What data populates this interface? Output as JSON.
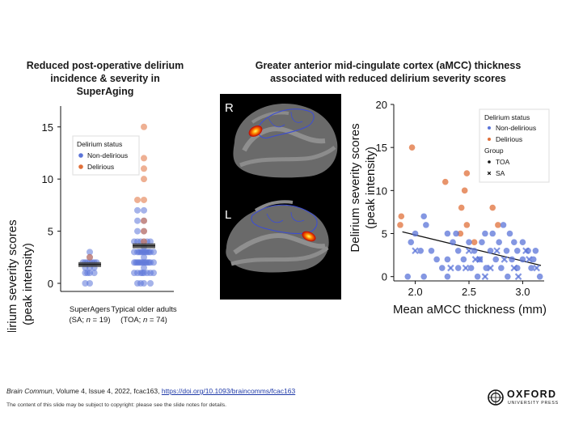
{
  "left_panel": {
    "title_line1": "Reduced post-operative delirium",
    "title_line2": "incidence & severity in SuperAging"
  },
  "right_panel": {
    "title_line1": "Greater anterior mid-cingulate cortex (aMCC) thickness",
    "title_line2": "associated with reduced delirium severity scores"
  },
  "brain": {
    "right_label": "R",
    "left_label": "L"
  },
  "colors": {
    "non_delirious": "#5b74d8",
    "delirious": "#e0703a",
    "median_bar": "#444444"
  },
  "chart_data": [
    {
      "type": "scatter",
      "subtype": "strip",
      "ylabel_line1": "Delirium severity scores",
      "ylabel_line2": "(peak intensity)",
      "ylim": [
        0,
        17
      ],
      "yticks": [
        0,
        5,
        10,
        15
      ],
      "categories": [
        {
          "name": "SuperAgers",
          "detail_prefix": "(SA; ",
          "detail_var": "n",
          "detail_suffix": " = 19)"
        },
        {
          "name": "Typical older adults",
          "detail_prefix": "(TOA; ",
          "detail_var": "n",
          "detail_suffix": " = 74)"
        }
      ],
      "medians": [
        1.8,
        3.6
      ],
      "legend": {
        "title": "Delirium status",
        "entries": [
          "Non-delirious",
          "Delirious"
        ],
        "position": "top-center"
      },
      "series": [
        {
          "name": "Non-delirious",
          "points": [
            [
              0,
              0
            ],
            [
              0,
              0
            ],
            [
              0,
              1
            ],
            [
              0,
              1
            ],
            [
              0,
              1
            ],
            [
              0,
              1
            ],
            [
              0,
              1.5
            ],
            [
              0,
              1.5
            ],
            [
              0,
              1.5
            ],
            [
              0,
              2
            ],
            [
              0,
              2
            ],
            [
              0,
              2
            ],
            [
              0,
              2
            ],
            [
              0,
              2
            ],
            [
              0,
              2
            ],
            [
              0,
              2
            ],
            [
              0,
              2.5
            ],
            [
              0,
              3
            ],
            [
              1,
              0
            ],
            [
              1,
              0
            ],
            [
              1,
              0
            ],
            [
              1,
              0
            ],
            [
              1,
              1
            ],
            [
              1,
              1
            ],
            [
              1,
              1
            ],
            [
              1,
              1
            ],
            [
              1,
              1
            ],
            [
              1,
              1
            ],
            [
              1,
              1
            ],
            [
              1,
              1
            ],
            [
              1,
              2
            ],
            [
              1,
              2
            ],
            [
              1,
              2
            ],
            [
              1,
              2
            ],
            [
              1,
              2
            ],
            [
              1,
              2
            ],
            [
              1,
              2
            ],
            [
              1,
              2
            ],
            [
              1,
              2
            ],
            [
              1,
              2
            ],
            [
              1,
              2
            ],
            [
              1,
              2
            ],
            [
              1,
              3
            ],
            [
              1,
              3
            ],
            [
              1,
              3
            ],
            [
              1,
              3
            ],
            [
              1,
              3
            ],
            [
              1,
              3
            ],
            [
              1,
              3
            ],
            [
              1,
              3
            ],
            [
              1,
              3
            ],
            [
              1,
              3
            ],
            [
              1,
              3
            ],
            [
              1,
              4
            ],
            [
              1,
              4
            ],
            [
              1,
              4
            ],
            [
              1,
              4
            ],
            [
              1,
              4
            ],
            [
              1,
              4
            ],
            [
              1,
              5
            ],
            [
              1,
              5
            ],
            [
              1,
              6
            ],
            [
              1,
              6
            ],
            [
              1,
              7
            ],
            [
              1,
              7
            ],
            [
              1,
              3.5
            ],
            [
              1,
              2.5
            ],
            [
              1,
              1.5
            ]
          ]
        },
        {
          "name": "Delirious",
          "points": [
            [
              0,
              2.5
            ],
            [
              1,
              15
            ],
            [
              1,
              12
            ],
            [
              1,
              11
            ],
            [
              1,
              10
            ],
            [
              1,
              8
            ],
            [
              1,
              8
            ],
            [
              1,
              6
            ],
            [
              1,
              5
            ],
            [
              1,
              4
            ]
          ]
        }
      ]
    },
    {
      "type": "scatter",
      "xlabel": "Mean aMCC thickness (mm)",
      "ylabel_line1": "Delirium severity scores",
      "ylabel_line2": "(peak intensity)",
      "xlim": [
        1.8,
        3.2
      ],
      "ylim": [
        -0.5,
        20
      ],
      "xticks": [
        2.0,
        2.5,
        3.0
      ],
      "yticks": [
        0,
        5,
        10,
        15,
        20
      ],
      "legend": {
        "title1": "Delirium status",
        "entries1": [
          "Non-delirious",
          "Delirious"
        ],
        "title2": "Group",
        "entries2": [
          "TOA",
          "SA"
        ],
        "position": "top-right"
      },
      "trendline": {
        "x": [
          1.88,
          3.17
        ],
        "y": [
          5.2,
          1.3
        ]
      },
      "series": [
        {
          "name": "Delirious",
          "marker": "circle",
          "points": [
            [
              1.97,
              15
            ],
            [
              2.28,
              11
            ],
            [
              2.48,
              12
            ],
            [
              2.46,
              10
            ],
            [
              2.72,
              8
            ],
            [
              2.43,
              8
            ],
            [
              1.87,
              7
            ],
            [
              1.86,
              6
            ],
            [
              2.48,
              6
            ],
            [
              2.77,
              6
            ],
            [
              2.42,
              5
            ],
            [
              2.55,
              4
            ]
          ]
        },
        {
          "name": "Non-delirious (TOA)",
          "marker": "circle",
          "points": [
            [
              2.08,
              7
            ],
            [
              2.1,
              6
            ],
            [
              2.82,
              6
            ],
            [
              2.0,
              5
            ],
            [
              2.3,
              5
            ],
            [
              2.38,
              5
            ],
            [
              2.65,
              5
            ],
            [
              2.72,
              5
            ],
            [
              2.88,
              5
            ],
            [
              1.96,
              4
            ],
            [
              2.35,
              4
            ],
            [
              2.5,
              4
            ],
            [
              2.62,
              4
            ],
            [
              2.78,
              4
            ],
            [
              2.92,
              4
            ],
            [
              3.0,
              4
            ],
            [
              2.05,
              3
            ],
            [
              2.15,
              3
            ],
            [
              2.4,
              3
            ],
            [
              2.55,
              3
            ],
            [
              2.7,
              3
            ],
            [
              2.85,
              3
            ],
            [
              2.95,
              3
            ],
            [
              3.05,
              3
            ],
            [
              3.12,
              3
            ],
            [
              2.2,
              2
            ],
            [
              2.3,
              2
            ],
            [
              2.45,
              2
            ],
            [
              2.6,
              2
            ],
            [
              2.75,
              2
            ],
            [
              2.9,
              2
            ],
            [
              3.0,
              2
            ],
            [
              3.1,
              2
            ],
            [
              2.25,
              1
            ],
            [
              2.4,
              1
            ],
            [
              2.52,
              1
            ],
            [
              2.66,
              1
            ],
            [
              2.8,
              1
            ],
            [
              2.95,
              1
            ],
            [
              3.08,
              1
            ],
            [
              1.93,
              0
            ],
            [
              2.08,
              0
            ],
            [
              2.3,
              0
            ],
            [
              2.58,
              0
            ],
            [
              2.86,
              0
            ],
            [
              3.16,
              0
            ]
          ]
        },
        {
          "name": "Non-delirious (SA)",
          "marker": "x",
          "points": [
            [
              2.0,
              3
            ],
            [
              2.5,
              3
            ],
            [
              2.6,
              2
            ],
            [
              2.83,
              2
            ],
            [
              3.03,
              3
            ],
            [
              2.33,
              1
            ],
            [
              2.47,
              1
            ],
            [
              2.7,
              1
            ],
            [
              2.92,
              1
            ],
            [
              3.13,
              1
            ],
            [
              2.65,
              0
            ],
            [
              2.96,
              0
            ],
            [
              2.56,
              2
            ],
            [
              2.76,
              3
            ],
            [
              3.06,
              2
            ]
          ]
        }
      ]
    }
  ],
  "footer": {
    "journal": "Brain Commun",
    "details": ", Volume 4, Issue 4, 2022, fcac163, ",
    "doi": "https://doi.org/10.1093/braincomms/fcac163",
    "note": "The content of this slide may be subject to copyright: please see the slide notes for details."
  },
  "logo": {
    "line1": "OXFORD",
    "line2": "UNIVERSITY PRESS"
  }
}
